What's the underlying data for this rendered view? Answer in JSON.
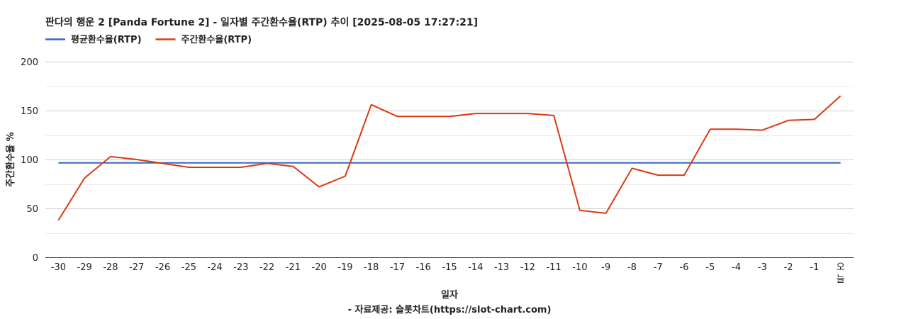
{
  "chart_data": {
    "type": "line",
    "title": "판다의 행운 2 [Panda Fortune 2] - 일자별 주간환수율(RTP) 추이 [2025-08-05 17:27:21]",
    "xlabel": "일자",
    "ylabel": "주간환수율 %",
    "source_note": "- 자료제공: 슬롯차트(https://slot-chart.com)",
    "categories": [
      "-30",
      "-29",
      "-28",
      "-27",
      "-26",
      "-25",
      "-24",
      "-23",
      "-22",
      "-21",
      "-20",
      "-19",
      "-18",
      "-17",
      "-16",
      "-15",
      "-14",
      "-13",
      "-12",
      "-11",
      "-10",
      "-9",
      "-8",
      "-7",
      "-6",
      "-5",
      "-4",
      "-3",
      "-2",
      "-1",
      "오늘"
    ],
    "ylim": [
      0,
      200
    ],
    "yticks": [
      0,
      50,
      100,
      150,
      200
    ],
    "grid": true,
    "legend_position": "top-left",
    "series": [
      {
        "name": "평균환수율(RTP)",
        "color": "#3366cc",
        "values": [
          96.5,
          96.5,
          96.5,
          96.5,
          96.5,
          96.5,
          96.5,
          96.5,
          96.5,
          96.5,
          96.5,
          96.5,
          96.5,
          96.5,
          96.5,
          96.5,
          96.5,
          96.5,
          96.5,
          96.5,
          96.5,
          96.5,
          96.5,
          96.5,
          96.5,
          96.5,
          96.5,
          96.5,
          96.5,
          96.5,
          96.5
        ]
      },
      {
        "name": "주간환수율(RTP)",
        "color": "#dc3912",
        "values": [
          38,
          81,
          103,
          100,
          96,
          92,
          92,
          92,
          96,
          93,
          72,
          83,
          156,
          144,
          144,
          144,
          147,
          147,
          147,
          145,
          48,
          45,
          91,
          84,
          84,
          131,
          131,
          130,
          140,
          141,
          165
        ]
      }
    ]
  }
}
